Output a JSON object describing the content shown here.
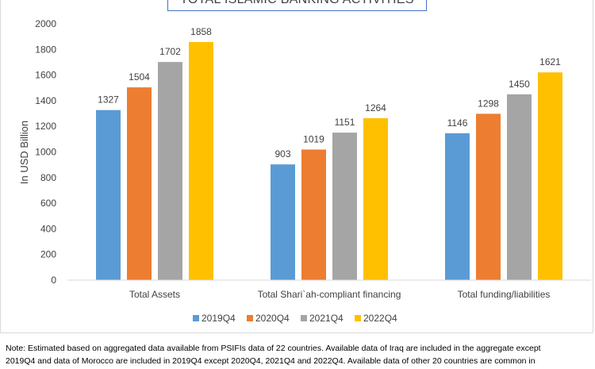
{
  "chart_data": {
    "type": "bar",
    "title": "TOTAL ISLAMIC BANKING ACTIVITIES",
    "ylabel": "In USD Billion",
    "xlabel": "",
    "ylim": [
      0,
      2000
    ],
    "yticks": [
      0,
      200,
      400,
      600,
      800,
      1000,
      1200,
      1400,
      1600,
      1800,
      2000
    ],
    "grid": false,
    "legend_position": "bottom",
    "categories": [
      "Total Assets",
      "Total Shari`ah-compliant financing",
      "Total funding/liabilities"
    ],
    "series": [
      {
        "name": "2019Q4",
        "color": "#5b9bd5",
        "values": [
          1327,
          903,
          1146
        ]
      },
      {
        "name": "2020Q4",
        "color": "#ed7d31",
        "values": [
          1504,
          1019,
          1298
        ]
      },
      {
        "name": "2021Q4",
        "color": "#a5a5a5",
        "values": [
          1702,
          1151,
          1450
        ]
      },
      {
        "name": "2022Q4",
        "color": "#ffc000",
        "values": [
          1858,
          1264,
          1621
        ]
      }
    ]
  },
  "note": {
    "line1": "Note: Estimated based on aggregated data available from PSIFIs data of 22 countries. Available data of Iraq are included in the aggregate except",
    "line2": "2019Q4 and data of Morocco are included in 2019Q4 except 2020Q4, 2021Q4 and 2022Q4. Available data of other 20 countries are common in"
  }
}
